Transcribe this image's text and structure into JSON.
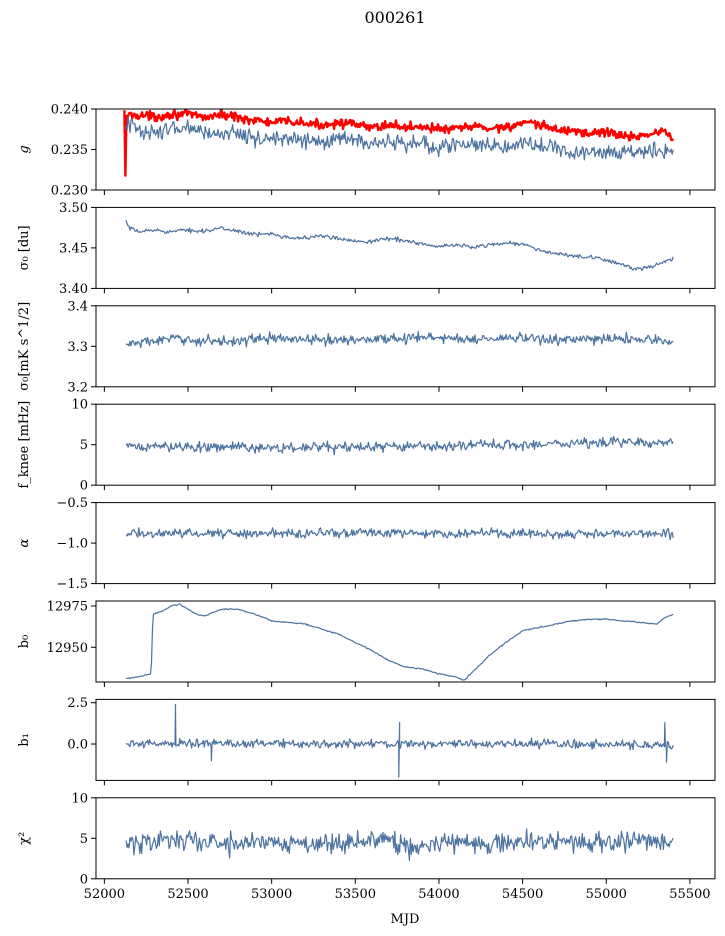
{
  "figure": {
    "title": "000261",
    "xlabel": "MJD",
    "xlim": [
      51950,
      55650
    ],
    "xticks": [
      52000,
      52500,
      53000,
      53500,
      54000,
      54500,
      55000,
      55500
    ],
    "xtick_labels": [
      "52000",
      "52500",
      "53000",
      "53500",
      "54000",
      "54500",
      "55000",
      "55500"
    ]
  },
  "chart_data": [
    {
      "type": "line",
      "id": "g",
      "ylabel": "g",
      "ylim": [
        0.23,
        0.24
      ],
      "yticks": [
        0.23,
        0.235,
        0.24
      ],
      "ytick_labels": [
        "0.230",
        "0.235",
        "0.240"
      ],
      "series": [
        {
          "name": "",
          "color": "#ff0000",
          "linewidth": 2.4,
          "noise": 0.0004,
          "x": [
            52120,
            52125,
            52130,
            52200,
            52300,
            52400,
            52500,
            52600,
            52700,
            52800,
            52900,
            53000,
            53100,
            53200,
            53300,
            53400,
            53500,
            53600,
            53700,
            53800,
            53900,
            54000,
            54100,
            54200,
            54300,
            54400,
            54500,
            54600,
            54700,
            54800,
            54900,
            55000,
            55100,
            55150,
            55200,
            55300,
            55350,
            55400
          ],
          "y": [
            0.2395,
            0.23,
            0.2392,
            0.2393,
            0.239,
            0.2394,
            0.2393,
            0.239,
            0.2393,
            0.239,
            0.2386,
            0.2383,
            0.2385,
            0.2382,
            0.238,
            0.2384,
            0.238,
            0.2377,
            0.2381,
            0.2377,
            0.2379,
            0.2375,
            0.2375,
            0.2379,
            0.2376,
            0.2378,
            0.2382,
            0.238,
            0.2375,
            0.2373,
            0.237,
            0.2372,
            0.2367,
            0.2365,
            0.2368,
            0.237,
            0.2374,
            0.2362
          ]
        },
        {
          "name": "",
          "color": "#4c72a0",
          "linewidth": 1.2,
          "noise": 0.0007,
          "x": [
            52130,
            52200,
            52300,
            52400,
            52500,
            52600,
            52700,
            52800,
            52900,
            53000,
            53100,
            53200,
            53300,
            53400,
            53500,
            53600,
            53700,
            53800,
            53900,
            54000,
            54100,
            54200,
            54300,
            54400,
            54500,
            54600,
            54700,
            54800,
            54900,
            55000,
            55100,
            55200,
            55300,
            55400
          ],
          "y": [
            0.2382,
            0.2376,
            0.237,
            0.2375,
            0.2375,
            0.2371,
            0.237,
            0.2371,
            0.2365,
            0.2362,
            0.2365,
            0.236,
            0.2358,
            0.2364,
            0.236,
            0.2357,
            0.2358,
            0.2356,
            0.2358,
            0.2353,
            0.2355,
            0.2357,
            0.2354,
            0.2355,
            0.236,
            0.2354,
            0.235,
            0.2348,
            0.2347,
            0.2346,
            0.2349,
            0.2347,
            0.2348,
            0.235
          ]
        }
      ]
    },
    {
      "type": "line",
      "id": "sigma0-du",
      "ylabel": "σ₀ [du]",
      "ylim": [
        3.4,
        3.5
      ],
      "yticks": [
        3.4,
        3.45,
        3.5
      ],
      "ytick_labels": [
        "3.40",
        "3.45",
        "3.50"
      ],
      "series": [
        {
          "name": "",
          "color": "#4c72a0",
          "linewidth": 1.2,
          "noise": 0.0018,
          "x": [
            52130,
            52150,
            52200,
            52300,
            52400,
            52500,
            52600,
            52700,
            52800,
            52900,
            53000,
            53100,
            53200,
            53300,
            53400,
            53500,
            53600,
            53700,
            53800,
            53900,
            54000,
            54100,
            54200,
            54300,
            54400,
            54500,
            54600,
            54700,
            54800,
            54900,
            55000,
            55100,
            55150,
            55200,
            55300,
            55400
          ],
          "y": [
            3.482,
            3.474,
            3.47,
            3.472,
            3.47,
            3.472,
            3.471,
            3.474,
            3.471,
            3.466,
            3.468,
            3.463,
            3.462,
            3.465,
            3.461,
            3.459,
            3.458,
            3.462,
            3.459,
            3.455,
            3.451,
            3.454,
            3.451,
            3.454,
            3.456,
            3.455,
            3.447,
            3.443,
            3.44,
            3.438,
            3.435,
            3.43,
            3.424,
            3.424,
            3.428,
            3.437
          ]
        }
      ]
    },
    {
      "type": "line",
      "id": "sigma0-mk",
      "ylabel": "σ₀[mK s^1/2]",
      "ylim": [
        3.2,
        3.4
      ],
      "yticks": [
        3.2,
        3.3,
        3.4
      ],
      "ytick_labels": [
        "3.2",
        "3.3",
        "3.4"
      ],
      "series": [
        {
          "name": "",
          "color": "#4c72a0",
          "linewidth": 1.2,
          "noise": 0.009,
          "x": [
            52130,
            52400,
            52700,
            53000,
            53300,
            53600,
            53900,
            54200,
            54500,
            54800,
            55100,
            55400
          ],
          "y": [
            3.305,
            3.318,
            3.312,
            3.32,
            3.315,
            3.318,
            3.322,
            3.318,
            3.32,
            3.315,
            3.32,
            3.312
          ]
        }
      ]
    },
    {
      "type": "line",
      "id": "fknee",
      "ylabel": "f_knee [mHz]",
      "ylim": [
        0,
        10
      ],
      "yticks": [
        0,
        5,
        10
      ],
      "ytick_labels": [
        "0",
        "5",
        "10"
      ],
      "series": [
        {
          "name": "",
          "color": "#4c72a0",
          "linewidth": 1.2,
          "noise": 0.45,
          "x": [
            52130,
            52500,
            53000,
            53500,
            54000,
            54500,
            55000,
            55400
          ],
          "y": [
            4.7,
            4.8,
            4.6,
            4.7,
            4.8,
            5.0,
            5.3,
            5.4
          ]
        }
      ]
    },
    {
      "type": "line",
      "id": "alpha",
      "ylabel": "α",
      "ylim": [
        -1.5,
        -0.5
      ],
      "yticks": [
        -1.5,
        -1.0,
        -0.5
      ],
      "ytick_labels": [
        "−1.5",
        "−1.0",
        "−0.5"
      ],
      "series": [
        {
          "name": "",
          "color": "#4c72a0",
          "linewidth": 1.2,
          "noise": 0.04,
          "x": [
            52130,
            52800,
            53500,
            54200,
            54900,
            55400
          ],
          "y": [
            -0.88,
            -0.88,
            -0.87,
            -0.88,
            -0.88,
            -0.88
          ]
        }
      ]
    },
    {
      "type": "line",
      "id": "b0",
      "ylabel": "b₀",
      "ylim": [
        12929,
        12978
      ],
      "yticks": [
        12950,
        12975
      ],
      "ytick_labels": [
        "12950",
        "12975"
      ],
      "series": [
        {
          "name": "",
          "color": "#4c72a0",
          "linewidth": 1.2,
          "noise": 0.25,
          "x": [
            52130,
            52200,
            52280,
            52290,
            52350,
            52400,
            52450,
            52500,
            52550,
            52600,
            52700,
            52800,
            52900,
            53000,
            53100,
            53200,
            53300,
            53400,
            53500,
            53600,
            53700,
            53800,
            53900,
            54000,
            54100,
            54150,
            54200,
            54300,
            54400,
            54500,
            54600,
            54700,
            54800,
            54900,
            55000,
            55100,
            55200,
            55300,
            55350,
            55400
          ],
          "y": [
            12931,
            12932,
            12934,
            12970,
            12972,
            12975,
            12976,
            12973,
            12970,
            12969,
            12973,
            12973,
            12970,
            12966,
            12965,
            12964,
            12961,
            12958,
            12953,
            12948,
            12942,
            12938,
            12937,
            12934,
            12932,
            12930,
            12935,
            12945,
            12953,
            12960,
            12962,
            12964,
            12966,
            12967,
            12967,
            12966,
            12965,
            12964,
            12968,
            12970
          ]
        }
      ]
    },
    {
      "type": "line",
      "id": "b1",
      "ylabel": "b₁",
      "ylim": [
        -2.2,
        2.7
      ],
      "yticks": [
        0.0,
        2.5
      ],
      "ytick_labels": [
        "0.0",
        "2.5"
      ],
      "series": [
        {
          "name": "",
          "color": "#4c72a0",
          "linewidth": 1.2,
          "noise": 0.18,
          "spikes": [
            [
              52425,
              2.4
            ],
            [
              52640,
              -1.0
            ],
            [
              53760,
              -2.0
            ],
            [
              53765,
              1.3
            ],
            [
              55350,
              1.3
            ],
            [
              55360,
              -1.1
            ]
          ],
          "x": [
            52130,
            52500,
            53000,
            53500,
            54000,
            54500,
            55000,
            55400
          ],
          "y": [
            0.0,
            0.05,
            0.05,
            0.0,
            0.0,
            0.0,
            0.0,
            -0.1
          ]
        }
      ]
    },
    {
      "type": "line",
      "id": "chi2",
      "ylabel": "χ²",
      "ylim": [
        0,
        10
      ],
      "yticks": [
        0,
        5,
        10
      ],
      "ytick_labels": [
        "0",
        "5",
        "10"
      ],
      "series": [
        {
          "name": "",
          "color": "#4c72a0",
          "linewidth": 1.2,
          "noise": 0.95,
          "x": [
            52130,
            52400,
            52700,
            53000,
            53300,
            53600,
            53900,
            54200,
            54500,
            54800,
            55100,
            55400
          ],
          "y": [
            4.2,
            5.0,
            4.3,
            4.6,
            4.4,
            4.8,
            4.0,
            4.5,
            4.6,
            4.4,
            4.6,
            4.8
          ]
        }
      ]
    }
  ]
}
